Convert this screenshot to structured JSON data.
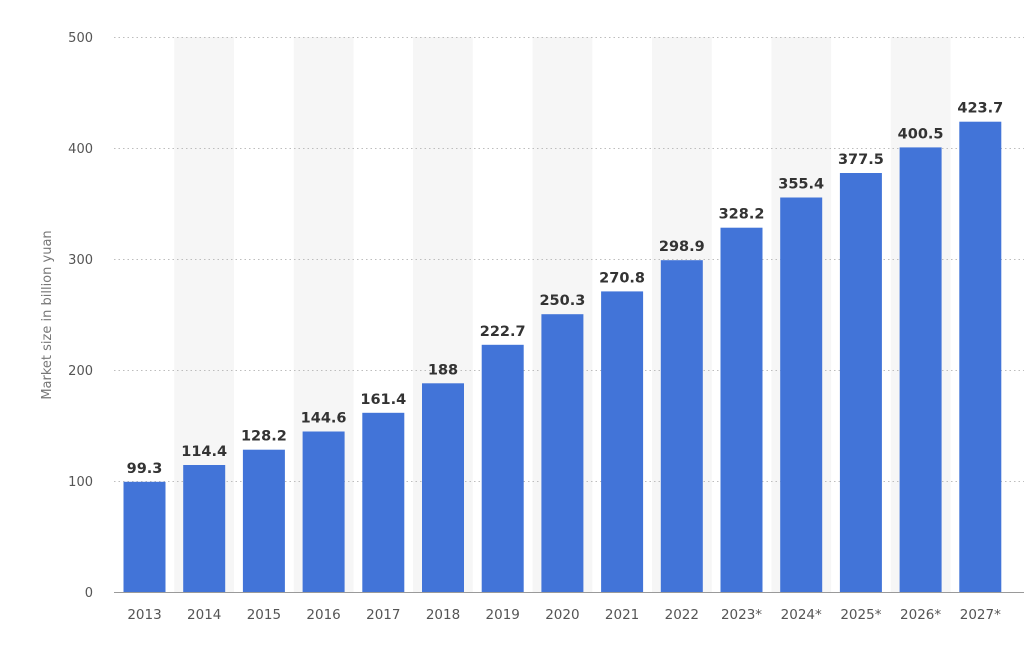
{
  "chart_data": {
    "type": "bar",
    "title": "",
    "xlabel": "",
    "ylabel": "Market size in billion yuan",
    "categories": [
      "2013",
      "2014",
      "2015",
      "2016",
      "2017",
      "2018",
      "2019",
      "2020",
      "2021",
      "2022",
      "2023*",
      "2024*",
      "2025*",
      "2026*",
      "2027*"
    ],
    "values": [
      99.3,
      114.4,
      128.2,
      144.6,
      161.4,
      188,
      222.7,
      250.3,
      270.8,
      298.9,
      328.2,
      355.4,
      377.5,
      400.5,
      423.7
    ],
    "value_labels": [
      "99.3",
      "114.4",
      "128.2",
      "144.6",
      "161.4",
      "188",
      "222.7",
      "250.3",
      "270.8",
      "298.9",
      "328.2",
      "355.4",
      "377.5",
      "400.5",
      "423.7"
    ],
    "ylim": [
      0,
      500
    ],
    "yticks": [
      0,
      100,
      200,
      300,
      400,
      500
    ],
    "ytick_labels": [
      "0",
      "100",
      "200",
      "300",
      "400",
      "500"
    ],
    "grid": true,
    "legend": "none",
    "colors": {
      "bar": "#4274d8",
      "band": "#f6f6f6",
      "grid": "#bdbdbd"
    }
  }
}
